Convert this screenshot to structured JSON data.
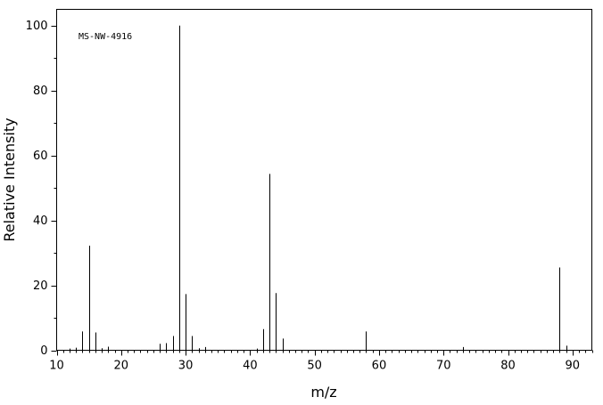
{
  "chart_data": {
    "type": "bar",
    "annotation": "MS-NW-4916",
    "xlabel": "m/z",
    "ylabel": "Relative Intensity",
    "xlim": [
      10,
      93
    ],
    "ylim": [
      0,
      105
    ],
    "x_major_ticks": [
      10,
      20,
      30,
      40,
      50,
      60,
      70,
      80,
      90
    ],
    "y_major_ticks": [
      0,
      20,
      40,
      60,
      80,
      100
    ],
    "grid": false,
    "legend": "none",
    "peaks": [
      {
        "mz": 12,
        "intensity": 0.5
      },
      {
        "mz": 13,
        "intensity": 0.8
      },
      {
        "mz": 14,
        "intensity": 5.8
      },
      {
        "mz": 15,
        "intensity": 32.2
      },
      {
        "mz": 16,
        "intensity": 5.5
      },
      {
        "mz": 17,
        "intensity": 0.6
      },
      {
        "mz": 18,
        "intensity": 1.1
      },
      {
        "mz": 26,
        "intensity": 2.0
      },
      {
        "mz": 27,
        "intensity": 2.2
      },
      {
        "mz": 28,
        "intensity": 4.4
      },
      {
        "mz": 29,
        "intensity": 100.0
      },
      {
        "mz": 30,
        "intensity": 17.3
      },
      {
        "mz": 31,
        "intensity": 4.4
      },
      {
        "mz": 32,
        "intensity": 0.6
      },
      {
        "mz": 33,
        "intensity": 1.0
      },
      {
        "mz": 41,
        "intensity": 0.5
      },
      {
        "mz": 42,
        "intensity": 6.5
      },
      {
        "mz": 43,
        "intensity": 54.3
      },
      {
        "mz": 44,
        "intensity": 17.6
      },
      {
        "mz": 45,
        "intensity": 3.6
      },
      {
        "mz": 58,
        "intensity": 5.8
      },
      {
        "mz": 73,
        "intensity": 1.0
      },
      {
        "mz": 88,
        "intensity": 25.5
      },
      {
        "mz": 89,
        "intensity": 1.4
      }
    ]
  }
}
